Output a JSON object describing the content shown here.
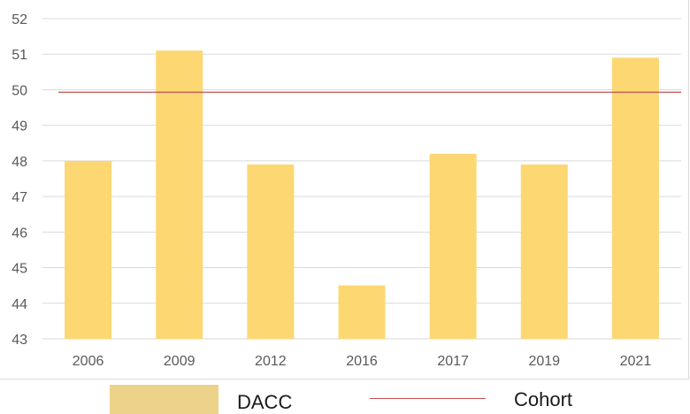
{
  "colors": {
    "bar": "#FCD772",
    "line": "#C0504D",
    "grid": "#D9D9D9",
    "legend_swatch": "#EDD389"
  },
  "legend": {
    "bar_label": "DACC",
    "line_label": "Cohort"
  },
  "chart_data": {
    "type": "bar",
    "title": "",
    "xlabel": "",
    "ylabel": "",
    "categories": [
      "2006",
      "2009",
      "2012",
      "2016",
      "2017",
      "2019",
      "2021"
    ],
    "series": [
      {
        "name": "DACC",
        "type": "bar",
        "values": [
          48.0,
          51.1,
          47.9,
          44.5,
          48.2,
          47.9,
          50.9
        ]
      },
      {
        "name": "Cohort",
        "type": "line",
        "values": [
          49.93,
          49.93,
          49.93,
          49.93,
          49.93,
          49.93,
          49.93
        ]
      }
    ],
    "ylim": [
      43,
      52
    ],
    "yticks": [
      43,
      44,
      45,
      46,
      47,
      48,
      49,
      50,
      51,
      52
    ],
    "grid": true,
    "legend_position": "bottom"
  }
}
